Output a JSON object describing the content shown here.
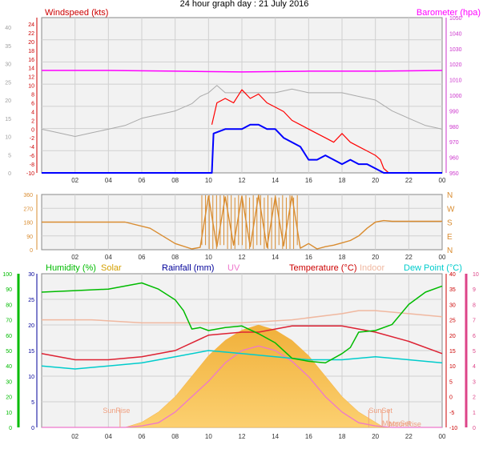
{
  "title": "24 hour graph day : 21 July 2016",
  "x_ticks": [
    "02",
    "04",
    "06",
    "08",
    "10",
    "12",
    "14",
    "16",
    "18",
    "20",
    "22",
    "00"
  ],
  "colors": {
    "plot_bg": "#f2f2f2",
    "grid": "#d0d0d0",
    "wind_speed": "#0000ff",
    "wind_gust": "#ff0000",
    "barometer": "#ff00ff",
    "wind_speed_axis": "#cc0000",
    "gray_axis": "#a0a0a0",
    "barometer_axis": "#cc33cc",
    "direction": "#d98c30",
    "humidity": "#00bb00",
    "solar": "#d4a000",
    "solar_fill": "#f8b040",
    "rainfall": "#000099",
    "uv": "#ee77cc",
    "temperature": "#cc0000",
    "temperature_line": "#dd2233",
    "indoor": "#f0b8a0",
    "dew_point": "#00cccc",
    "sun_event": "#f0a080",
    "right_axis_uv": "#dd4488"
  },
  "panel1": {
    "legend_left": "Windspeed (kts)",
    "legend_right": "Barometer (hpa)",
    "left_ticks_gray": [
      "40",
      "35",
      "30",
      "25",
      "20",
      "15",
      "10",
      "5",
      "0"
    ],
    "left_ticks_red": [
      "24",
      "22",
      "20",
      "18",
      "16",
      "14",
      "12",
      "10",
      "8",
      "6",
      "4",
      "2",
      "0",
      "-2",
      "-4",
      "-6",
      "-8",
      "-10"
    ],
    "right_ticks": [
      "1050",
      "1040",
      "1030",
      "1020",
      "1010",
      "1000",
      "990",
      "980",
      "970",
      "960",
      "950"
    ]
  },
  "panel2": {
    "left_ticks": [
      "360",
      "270",
      "180",
      "90",
      "0"
    ],
    "right_labels": [
      "N",
      "W",
      "S",
      "E",
      "N"
    ]
  },
  "panel3": {
    "legend": [
      "Humidity (%)",
      "Solar",
      "Rainfall (mm)",
      "UV",
      "Temperature (°C)",
      "Indoor",
      "Dew Point (°C)"
    ],
    "left_outer_ticks": [
      "100",
      "90",
      "80",
      "70",
      "60",
      "50",
      "40",
      "30",
      "20",
      "10",
      "0"
    ],
    "left_inner_ticks": [
      "30",
      "25",
      "20",
      "15",
      "10",
      "5",
      "0"
    ],
    "right_inner_ticks": [
      "40",
      "35",
      "30",
      "25",
      "20",
      "15",
      "10",
      "5",
      "0",
      "-5",
      "-10"
    ],
    "right_outer_ticks": [
      "10",
      "9",
      "8",
      "7",
      "6",
      "5",
      "4",
      "3",
      "2",
      "1",
      "0"
    ],
    "sun_labels": [
      "SunRise",
      "SunSet",
      "MoonRise",
      "MoonSet"
    ]
  },
  "chart_data": [
    {
      "type": "line",
      "title": "24 hour graph day : 21 July 2016",
      "xlabel": "",
      "ylabel": "Windspeed (kts)",
      "xlim": [
        0,
        24
      ],
      "ylim": [
        -10,
        25
      ],
      "series": [
        {
          "name": "Windspeed (kts)",
          "axis": "kts",
          "x": [
            0,
            10,
            10.2,
            10.3,
            11,
            12,
            12.5,
            13,
            13.5,
            14,
            14.5,
            15,
            15.5,
            16,
            16.5,
            17,
            17.5,
            18,
            18.5,
            19,
            19.5,
            20,
            20.5,
            21,
            21.5,
            24
          ],
          "y": [
            -10,
            -10,
            -10,
            -1,
            0,
            0,
            1,
            1,
            0,
            0,
            -2,
            -3,
            -4,
            -7,
            -7,
            -6,
            -7,
            -8,
            -7,
            -8,
            -8,
            -9,
            -10,
            -10,
            -10,
            -10
          ]
        },
        {
          "name": "Windspeed (kts) gust",
          "axis": "kts",
          "x": [
            10.2,
            10.5,
            11,
            11.5,
            12,
            12.5,
            13,
            13.5,
            14,
            14.5,
            15,
            15.5,
            16,
            16.5,
            17,
            17.5,
            18,
            18.5,
            19,
            19.5,
            20,
            20.3,
            20.5,
            20.8
          ],
          "y": [
            1,
            6,
            7,
            6,
            9,
            7,
            8,
            6,
            5,
            4,
            2,
            1,
            0,
            -1,
            -2,
            -3,
            -1,
            -3,
            -4,
            -5,
            -6,
            -7,
            -9,
            -10
          ]
        },
        {
          "name": "Barometer (hpa)",
          "axis": "hpa",
          "x": [
            0,
            4,
            8,
            12,
            16,
            20,
            24
          ],
          "y": [
            1016,
            1016,
            1015.5,
            1015,
            1015.5,
            1015.5,
            1016
          ]
        },
        {
          "name": "",
          "axis": "gray",
          "x": [
            0,
            1,
            2,
            3,
            4,
            5,
            6,
            7,
            8,
            9,
            9.5,
            10,
            10.5,
            11,
            12,
            13,
            14,
            15,
            16,
            17,
            18,
            19,
            20,
            21,
            22,
            23,
            24
          ],
          "y": [
            12,
            11,
            10,
            11,
            12,
            13,
            15,
            16,
            17,
            19,
            21,
            22,
            24,
            22,
            22,
            22,
            22,
            23,
            22,
            22,
            22,
            21,
            20,
            17,
            15,
            13,
            12
          ]
        }
      ]
    },
    {
      "type": "scatter",
      "title": "",
      "xlabel": "",
      "ylabel": "",
      "xlim": [
        0,
        24
      ],
      "ylim": [
        0,
        360
      ],
      "series": [
        {
          "name": "",
          "x": [
            0,
            5,
            6.5,
            8,
            9,
            9.5,
            10,
            10.5,
            11,
            11.5,
            12,
            12.5,
            13,
            13.5,
            14,
            14.5,
            15,
            15.5,
            16,
            16.5,
            17,
            17.5,
            18,
            18.5,
            19,
            19.5,
            20,
            20.5,
            21,
            22,
            24
          ],
          "y": [
            180,
            180,
            140,
            40,
            5,
            15,
            350,
            20,
            345,
            30,
            350,
            20,
            355,
            15,
            345,
            25,
            350,
            10,
            40,
            5,
            20,
            30,
            45,
            60,
            90,
            140,
            180,
            190,
            185,
            185,
            185
          ]
        }
      ]
    },
    {
      "type": "line",
      "title": "",
      "xlabel": "",
      "ylabel": "",
      "xlim": [
        0,
        24
      ],
      "series": [
        {
          "name": "Humidity (%)",
          "axis": "%",
          "x": [
            0,
            2,
            4,
            6,
            7,
            8,
            8.5,
            9,
            9.5,
            10,
            11,
            12,
            13,
            14,
            15,
            16,
            17,
            18,
            18.5,
            19,
            20,
            21,
            22,
            23,
            24
          ],
          "y": [
            88,
            89,
            90,
            94,
            90,
            83,
            76,
            64,
            65,
            63,
            65,
            66,
            61,
            55,
            45,
            43,
            42,
            48,
            52,
            62,
            63,
            67,
            80,
            88,
            92
          ]
        },
        {
          "name": "Temperature (°C)",
          "axis": "C",
          "x": [
            0,
            2,
            4,
            6,
            8,
            10,
            12,
            13,
            14,
            15,
            16,
            18,
            20,
            22,
            24
          ],
          "y": [
            14,
            12,
            12,
            13,
            15,
            20,
            21,
            21,
            22,
            23,
            23,
            23,
            21,
            18,
            14
          ]
        },
        {
          "name": "Indoor",
          "axis": "C",
          "x": [
            0,
            3,
            6,
            9,
            12,
            15,
            18,
            19,
            20,
            22,
            24
          ],
          "y": [
            25,
            25,
            24,
            24,
            24,
            25,
            27,
            28,
            28,
            27,
            26
          ]
        },
        {
          "name": "Dew Point (°C)",
          "axis": "C",
          "x": [
            0,
            2,
            4,
            6,
            8,
            10,
            12,
            14,
            16,
            18,
            20,
            22,
            24
          ],
          "y": [
            10,
            9,
            10,
            11,
            13,
            15,
            14,
            13,
            12,
            12,
            13,
            12,
            11
          ]
        },
        {
          "name": "Solar",
          "axis": "solar",
          "x": [
            0,
            5,
            6,
            7,
            8,
            9,
            10,
            11,
            12,
            13,
            14,
            15,
            16,
            17,
            18,
            19,
            20,
            20.5,
            24
          ],
          "y": [
            0,
            0,
            1,
            3,
            6,
            10,
            14,
            17,
            19,
            20,
            19,
            17,
            14,
            10,
            6,
            3,
            1,
            0,
            0
          ]
        },
        {
          "name": "UV",
          "axis": "uv",
          "x": [
            0,
            5,
            6,
            7,
            8,
            9,
            10,
            11,
            12,
            13,
            14,
            15,
            16,
            17,
            18,
            19,
            20,
            21,
            24
          ],
          "y": [
            0,
            0,
            0.1,
            0.3,
            1,
            2,
            3,
            4.2,
            5,
            5.3,
            5,
            4.3,
            3.3,
            2,
            1,
            0.3,
            0.1,
            0,
            0
          ]
        }
      ]
    }
  ]
}
